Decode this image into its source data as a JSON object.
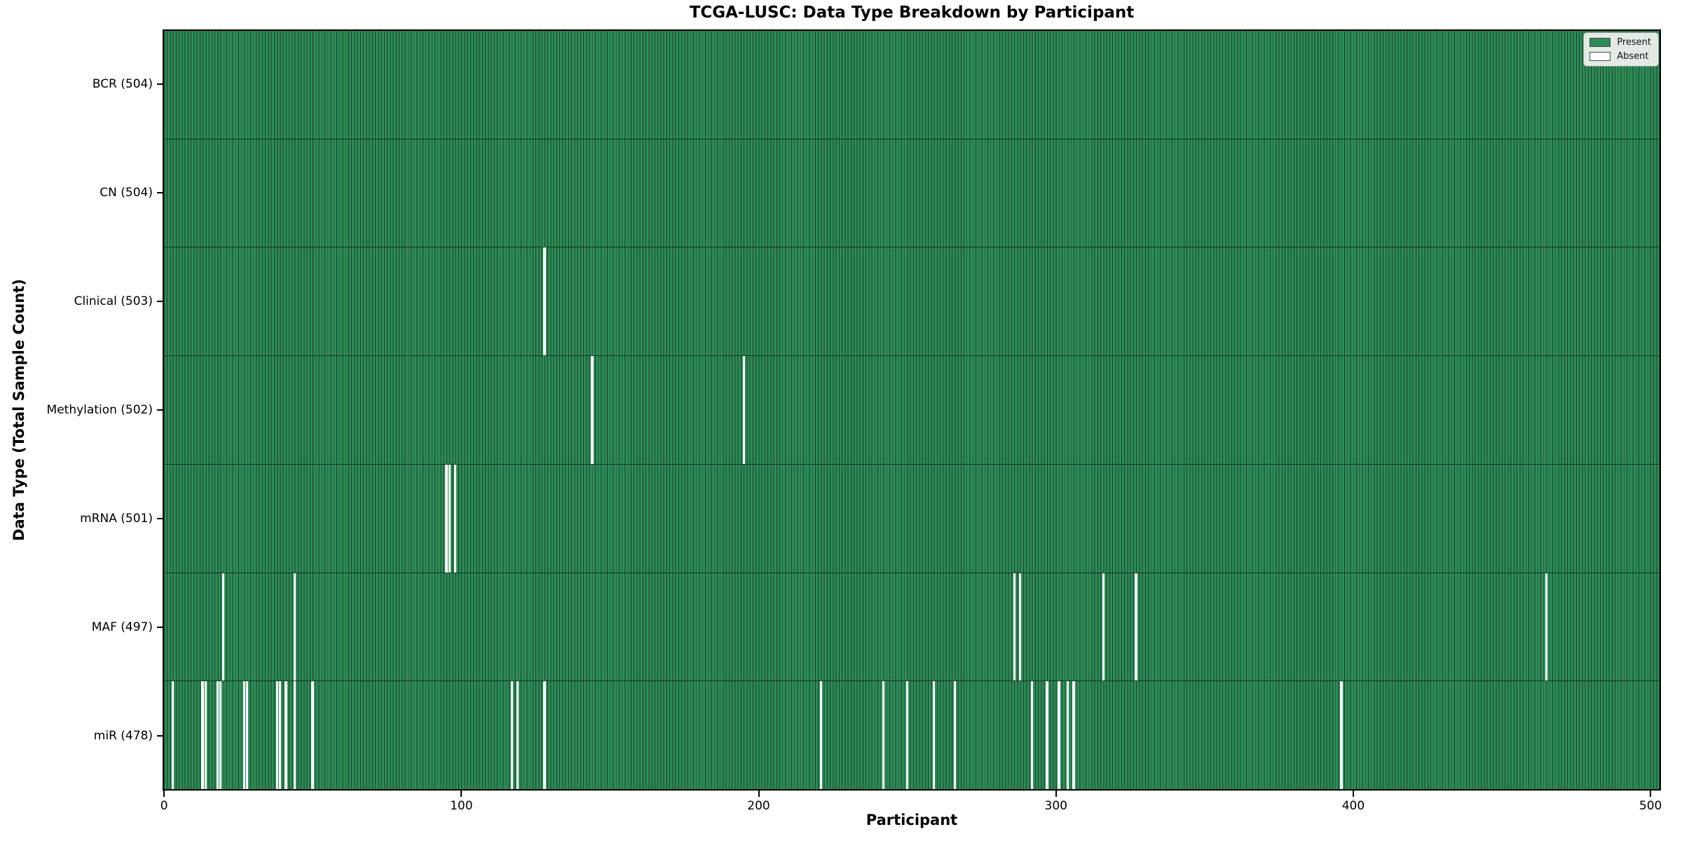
{
  "chart_data": {
    "type": "heatmap",
    "title": "TCGA-LUSC: Data Type Breakdown by Participant",
    "xlabel": "Participant",
    "ylabel": "Data Type (Total Sample Count)",
    "x_ticks": [
      0,
      100,
      200,
      300,
      400,
      500
    ],
    "xlim": [
      -0.5,
      503.5
    ],
    "n_participants": 504,
    "grid": false,
    "legend": {
      "position": "upper-right",
      "entries": [
        {
          "label": "Present",
          "color": "#2e8b57"
        },
        {
          "label": "Absent",
          "color": "#ffffff"
        }
      ]
    },
    "colors": {
      "present": "#2e8b57",
      "present_edge": "#16452a",
      "absent": "#ffffff",
      "row_divider": "#14351f",
      "axis": "#000000",
      "background": "#ffffff"
    },
    "rows": [
      {
        "label": "BCR (504)",
        "data_type": "BCR",
        "total_samples": 504,
        "absent_participants": []
      },
      {
        "label": "CN (504)",
        "data_type": "CN",
        "total_samples": 504,
        "absent_participants": []
      },
      {
        "label": "Clinical (503)",
        "data_type": "Clinical",
        "total_samples": 503,
        "absent_participants": [
          128
        ]
      },
      {
        "label": "Methylation (502)",
        "data_type": "Methylation",
        "total_samples": 502,
        "absent_participants": [
          144,
          195
        ]
      },
      {
        "label": "mRNA (501)",
        "data_type": "mRNA",
        "total_samples": 501,
        "absent_participants": [
          95,
          96,
          98
        ]
      },
      {
        "label": "MAF (497)",
        "data_type": "MAF",
        "total_samples": 497,
        "absent_participants": [
          20,
          44,
          286,
          288,
          316,
          327,
          465
        ]
      },
      {
        "label": "miR (478)",
        "data_type": "miR",
        "total_samples": 478,
        "absent_participants": [
          3,
          13,
          14,
          18,
          19,
          27,
          28,
          38,
          39,
          41,
          44,
          50,
          117,
          119,
          128,
          221,
          242,
          250,
          259,
          266,
          292,
          297,
          301,
          304,
          306,
          396
        ]
      }
    ]
  }
}
